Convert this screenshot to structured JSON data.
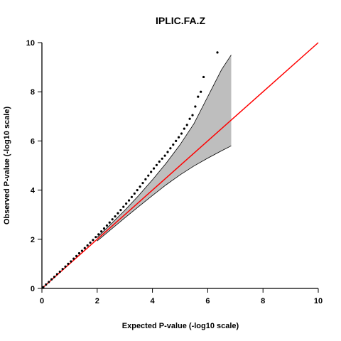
{
  "chart_data": {
    "type": "scatter",
    "title": "IPLIC.FA.Z",
    "xlabel": "Expected P-value (-log10 scale)",
    "ylabel": "Observed P-value (-log10 scale)",
    "xlim": [
      0,
      10
    ],
    "ylim": [
      0,
      10
    ],
    "xticks": [
      0,
      2,
      4,
      6,
      8,
      10
    ],
    "yticks": [
      0,
      2,
      4,
      6,
      8,
      10
    ],
    "grid": false,
    "legend": "none",
    "reference_line": {
      "name": "",
      "color": "#ff0000",
      "from": [
        0,
        0
      ],
      "to": [
        10,
        10
      ]
    },
    "confidence_band": {
      "fill": "#bebebe",
      "x": [
        2.0,
        2.5,
        3.0,
        3.5,
        4.0,
        4.5,
        5.0,
        5.5,
        6.0,
        6.5,
        6.85
      ],
      "upper": [
        2.08,
        2.62,
        3.18,
        3.78,
        4.42,
        5.1,
        5.85,
        6.7,
        7.8,
        8.9,
        9.5
      ],
      "lower": [
        1.93,
        2.4,
        2.87,
        3.33,
        3.78,
        4.22,
        4.62,
        4.98,
        5.3,
        5.6,
        5.8
      ]
    },
    "series": [
      {
        "type": "scatter",
        "color": "#000000",
        "x": [
          0.05,
          0.15,
          0.25,
          0.35,
          0.45,
          0.55,
          0.65,
          0.75,
          0.85,
          0.95,
          1.05,
          1.15,
          1.25,
          1.35,
          1.45,
          1.55,
          1.65,
          1.75,
          1.85,
          1.95,
          2.05,
          2.15,
          2.25,
          2.35,
          2.45,
          2.55,
          2.65,
          2.75,
          2.85,
          2.95,
          3.05,
          3.15,
          3.25,
          3.35,
          3.45,
          3.55,
          3.65,
          3.75,
          3.85,
          3.95,
          4.05,
          4.15,
          4.25,
          4.35,
          4.45,
          4.55,
          4.65,
          4.75,
          4.85,
          4.95,
          5.05,
          5.15,
          5.25,
          5.35,
          5.45,
          5.55,
          5.65,
          5.75,
          5.85,
          6.35
        ],
        "y": [
          0.05,
          0.16,
          0.26,
          0.37,
          0.47,
          0.58,
          0.68,
          0.79,
          0.89,
          1.0,
          1.1,
          1.21,
          1.32,
          1.43,
          1.53,
          1.64,
          1.75,
          1.86,
          1.97,
          2.09,
          2.2,
          2.32,
          2.44,
          2.56,
          2.68,
          2.81,
          2.93,
          3.06,
          3.19,
          3.32,
          3.45,
          3.58,
          3.72,
          3.86,
          4.0,
          4.14,
          4.29,
          4.44,
          4.59,
          4.74,
          4.88,
          5.02,
          5.16,
          5.28,
          5.4,
          5.55,
          5.7,
          5.85,
          6.0,
          6.15,
          6.3,
          6.5,
          6.65,
          6.9,
          7.05,
          7.4,
          7.8,
          8.0,
          8.6,
          9.6
        ]
      }
    ]
  }
}
